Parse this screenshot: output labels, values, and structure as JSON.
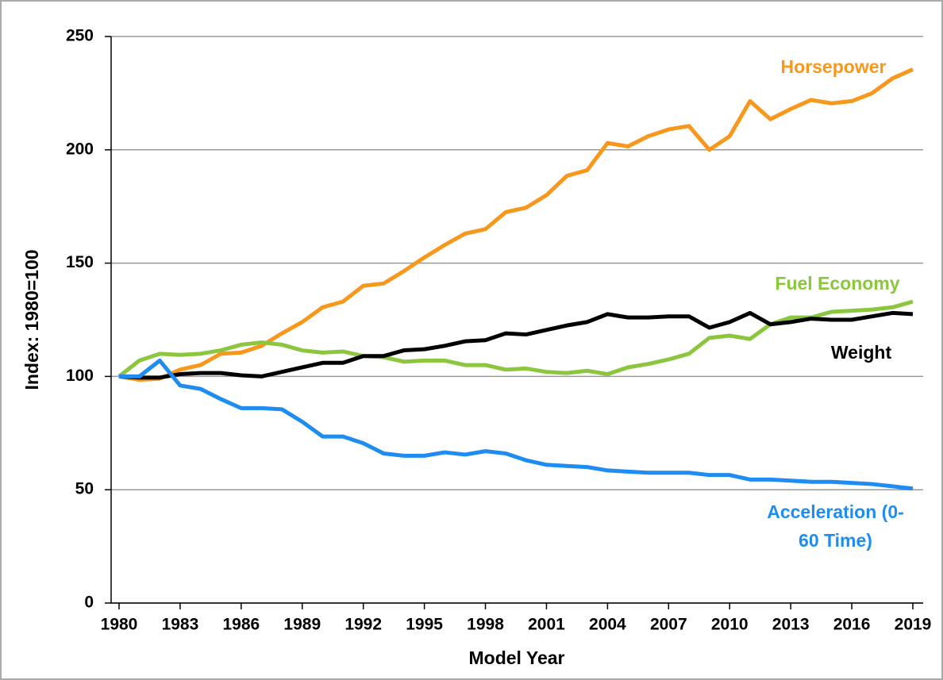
{
  "chart_data": {
    "type": "line",
    "xlabel": "Model Year",
    "ylabel": "Index: 1980=100",
    "x": [
      1980,
      1981,
      1982,
      1983,
      1984,
      1985,
      1986,
      1987,
      1988,
      1989,
      1990,
      1991,
      1992,
      1993,
      1994,
      1995,
      1996,
      1997,
      1998,
      1999,
      2000,
      2001,
      2002,
      2003,
      2004,
      2005,
      2006,
      2007,
      2008,
      2009,
      2010,
      2011,
      2012,
      2013,
      2014,
      2015,
      2016,
      2017,
      2018,
      2019
    ],
    "series": [
      {
        "name": "Horsepower",
        "color": "#f7981d",
        "values": [
          100,
          98.5,
          99,
          103,
          105,
          110,
          110.5,
          113.5,
          119,
          124,
          130.5,
          133,
          140,
          141,
          146.5,
          152.5,
          158,
          163,
          165,
          172.5,
          174.5,
          180,
          188.5,
          191,
          203,
          201.5,
          206,
          209,
          210.5,
          200,
          206,
          221.5,
          213.5,
          218,
          222,
          220.5,
          221.5,
          225,
          231.5,
          235.5
        ]
      },
      {
        "name": "Fuel Economy",
        "color": "#8cc63f",
        "values": [
          100,
          107,
          110,
          109.5,
          110,
          111.5,
          114,
          115,
          114,
          111.5,
          110.5,
          111,
          109,
          108.5,
          106.5,
          107,
          107,
          105,
          105,
          103,
          103.5,
          102,
          101.5,
          102.5,
          101,
          104,
          105.5,
          107.5,
          110,
          117,
          118,
          116.5,
          123,
          126,
          126,
          128.5,
          129,
          129.5,
          130.5,
          133
        ]
      },
      {
        "name": "Weight",
        "color": "#000000",
        "values": [
          100,
          99.5,
          99.5,
          101,
          101.5,
          101.5,
          100.5,
          100,
          102,
          104,
          106,
          106,
          109,
          109,
          111.5,
          112,
          113.5,
          115.5,
          116,
          119,
          118.5,
          120.5,
          122.5,
          124,
          127.5,
          126,
          126,
          126.5,
          126.5,
          121.5,
          124,
          128,
          123,
          124,
          125.5,
          125,
          125,
          126.5,
          128,
          127.5
        ]
      },
      {
        "name": "Acceleration (0-60 Time)",
        "color": "#1e8cf0",
        "values": [
          100,
          100,
          107,
          96,
          94.5,
          90,
          86,
          86,
          85.5,
          80,
          73.5,
          73.5,
          70.5,
          66,
          65,
          65,
          66.5,
          65.5,
          67,
          66,
          63,
          61,
          60.5,
          60,
          58.5,
          58,
          57.5,
          57.5,
          57.5,
          56.5,
          56.5,
          54.5,
          54.5,
          54,
          53.5,
          53.5,
          53,
          52.5,
          51.5,
          50.5
        ]
      }
    ],
    "xlim": [
      1980,
      2019
    ],
    "xticks": [
      1980,
      1983,
      1986,
      1989,
      1992,
      1995,
      1998,
      2001,
      2004,
      2007,
      2010,
      2013,
      2016,
      2019
    ],
    "ylim": [
      0,
      250
    ],
    "yticks": [
      0,
      50,
      100,
      150,
      200,
      250
    ],
    "grid": true
  }
}
